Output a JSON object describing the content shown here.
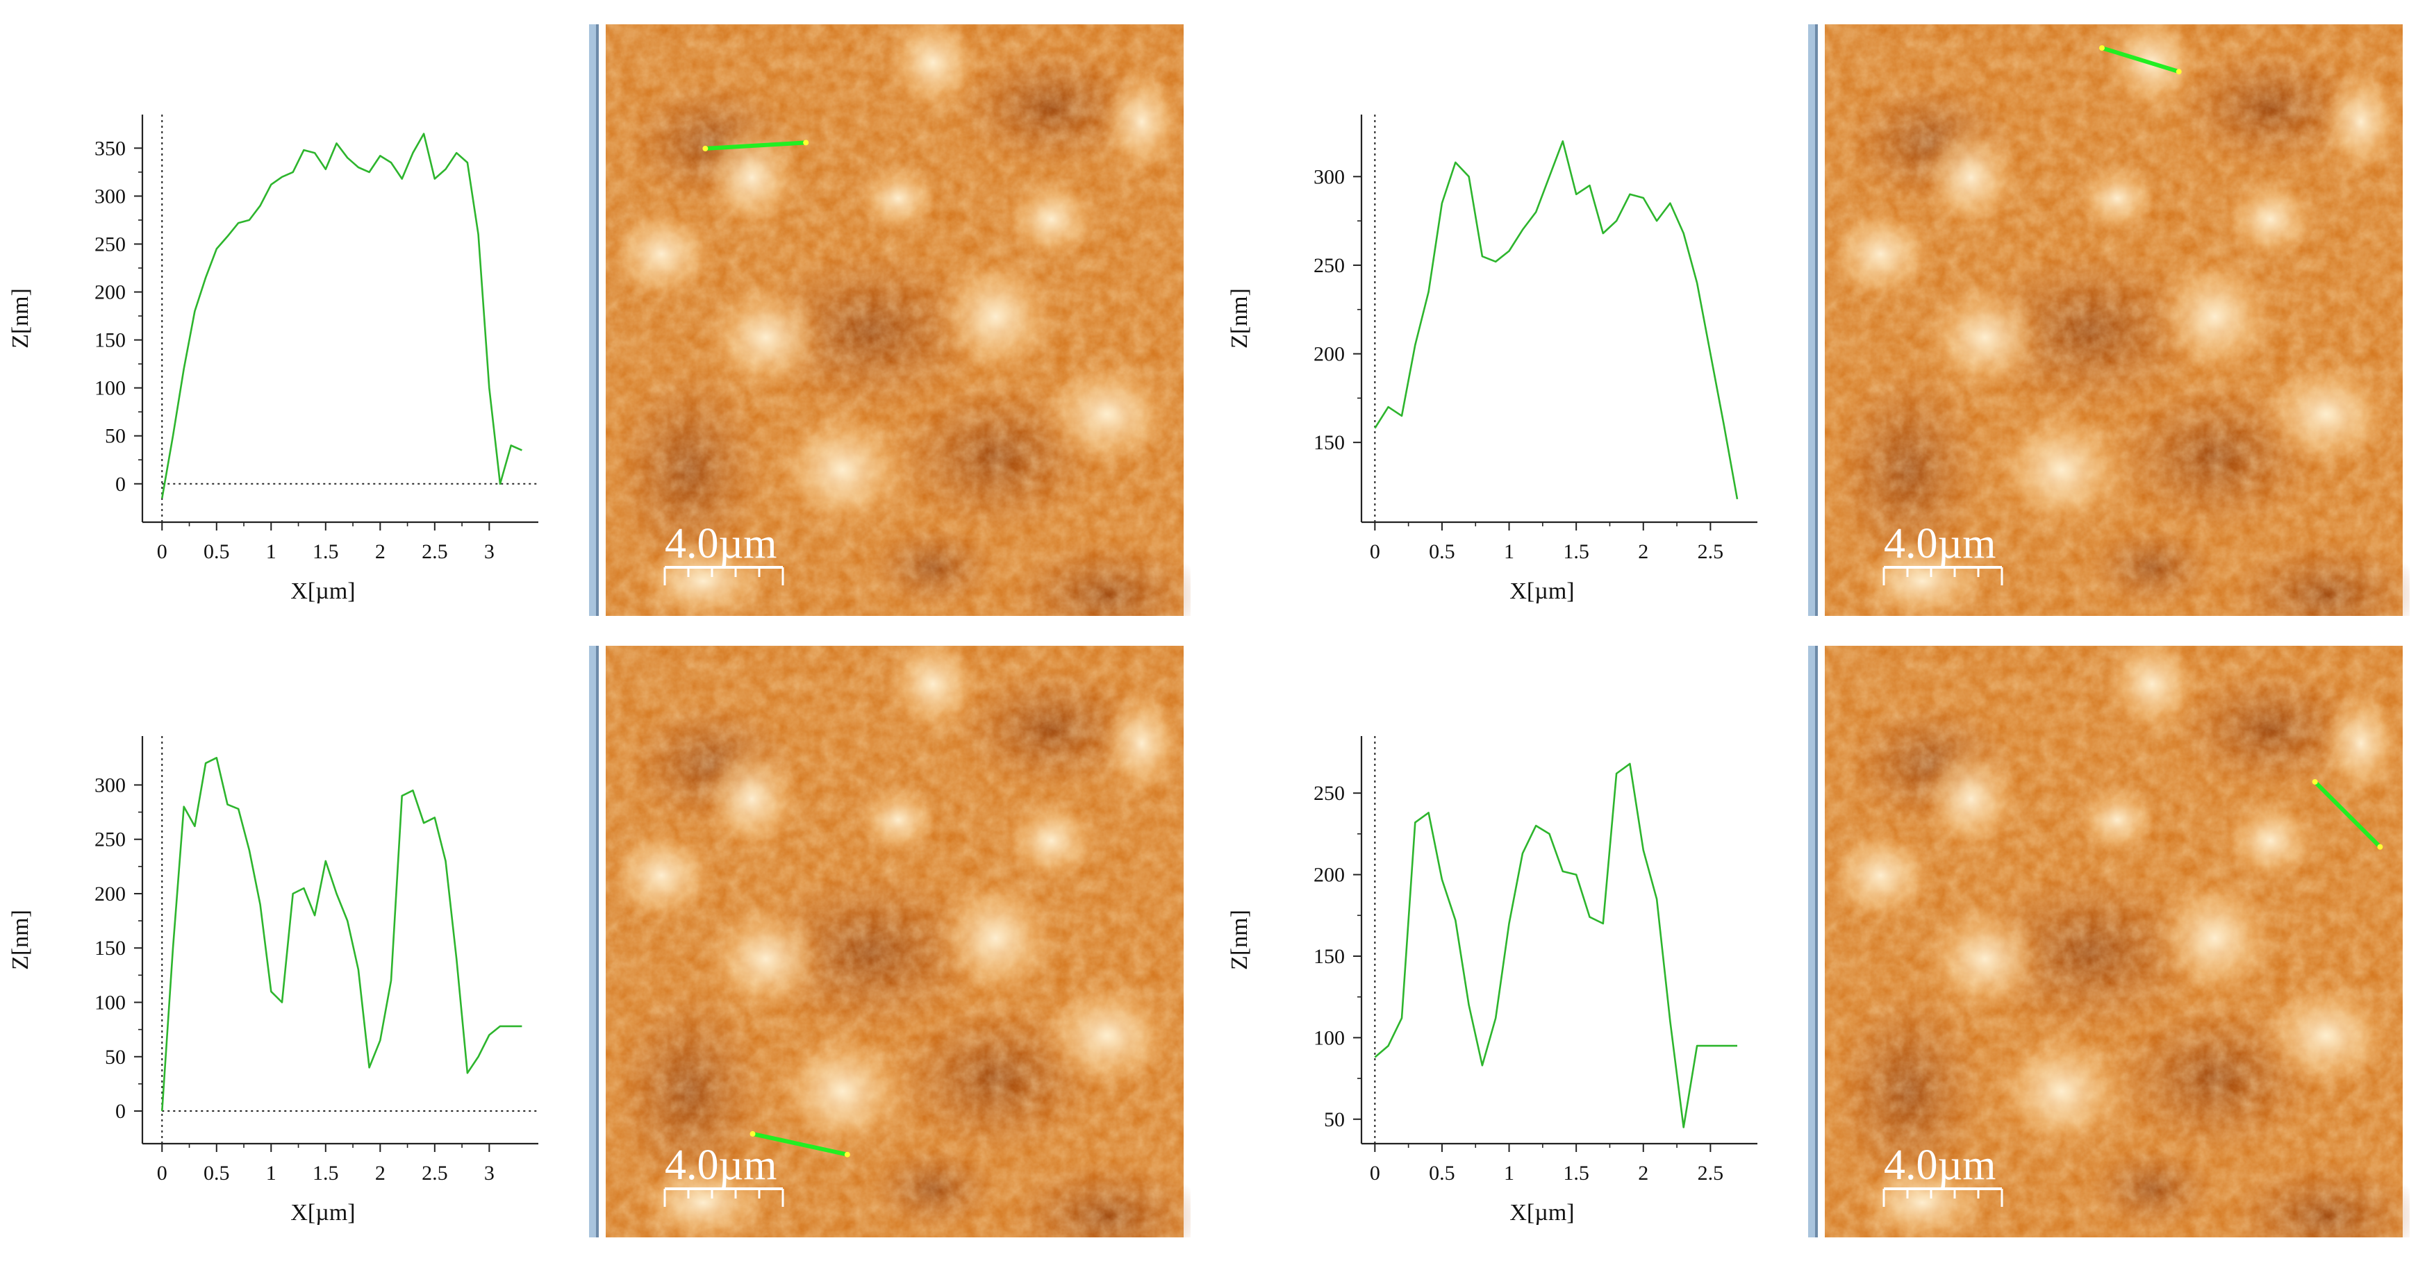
{
  "colors": {
    "profile_line": "#2db52d",
    "scan_line": "#22ee22",
    "scan_line_ends": "#ffff33",
    "afm_dark": "#8a3300",
    "afm_mid": "#d2741e",
    "afm_light": "#fbe7c0",
    "frame_blue": "#a9c4dd"
  },
  "chart_data": [
    {
      "type": "line",
      "xlabel": "X[µm]",
      "ylabel": "Z[nm]",
      "xlim": [
        -0.18,
        3.45
      ],
      "ylim": [
        -40,
        385
      ],
      "xticks": [
        0,
        0.5,
        1,
        1.5,
        2,
        2.5,
        3
      ],
      "xtick_labels": [
        "0",
        "0.5",
        "1",
        "1.5",
        "2",
        "2.5",
        "3"
      ],
      "yticks": [
        0,
        50,
        100,
        150,
        200,
        250,
        300,
        350
      ],
      "ytick_labels": [
        "0",
        "50",
        "100",
        "150",
        "200",
        "250",
        "300",
        "350"
      ],
      "zero_line": true,
      "x": [
        0,
        0.1,
        0.2,
        0.3,
        0.4,
        0.5,
        0.6,
        0.7,
        0.8,
        0.9,
        1.0,
        1.1,
        1.2,
        1.3,
        1.4,
        1.5,
        1.6,
        1.7,
        1.8,
        1.9,
        2.0,
        2.1,
        2.2,
        2.3,
        2.4,
        2.5,
        2.6,
        2.7,
        2.8,
        2.9,
        3.0,
        3.1,
        3.2,
        3.3
      ],
      "y": [
        -15,
        50,
        120,
        180,
        215,
        245,
        258,
        272,
        275,
        290,
        312,
        320,
        325,
        348,
        345,
        328,
        355,
        340,
        330,
        325,
        342,
        335,
        318,
        345,
        365,
        318,
        328,
        345,
        335,
        260,
        100,
        0,
        40,
        35
      ],
      "scale_bar": "4.0µm",
      "scan_line": [
        [
          0.18,
          0.21
        ],
        [
          0.35,
          0.2
        ]
      ]
    },
    {
      "type": "line",
      "xlabel": "X[µm]",
      "ylabel": "Z[nm]",
      "xlim": [
        -0.1,
        2.85
      ],
      "ylim": [
        105,
        335
      ],
      "xticks": [
        0,
        0.5,
        1,
        1.5,
        2,
        2.5
      ],
      "xtick_labels": [
        "0",
        "0.5",
        "1",
        "1.5",
        "2",
        "2.5"
      ],
      "yticks": [
        150,
        200,
        250,
        300
      ],
      "ytick_labels": [
        "150",
        "200",
        "250",
        "300"
      ],
      "zero_line": false,
      "x": [
        0,
        0.1,
        0.2,
        0.3,
        0.4,
        0.5,
        0.6,
        0.7,
        0.8,
        0.9,
        1.0,
        1.1,
        1.2,
        1.3,
        1.4,
        1.5,
        1.6,
        1.7,
        1.8,
        1.9,
        2.0,
        2.1,
        2.2,
        2.3,
        2.4,
        2.5,
        2.6,
        2.7
      ],
      "y": [
        158,
        170,
        165,
        205,
        235,
        285,
        308,
        300,
        255,
        252,
        258,
        270,
        280,
        300,
        320,
        290,
        295,
        268,
        275,
        290,
        288,
        275,
        285,
        268,
        240,
        200,
        160,
        118
      ],
      "scale_bar": "4.0µm",
      "scan_line": [
        [
          0.48,
          0.04
        ],
        [
          0.61,
          0.08
        ]
      ]
    },
    {
      "type": "line",
      "xlabel": "X[µm]",
      "ylabel": "Z[nm]",
      "xlim": [
        -0.18,
        3.45
      ],
      "ylim": [
        -30,
        345
      ],
      "xticks": [
        0,
        0.5,
        1,
        1.5,
        2,
        2.5,
        3
      ],
      "xtick_labels": [
        "0",
        "0.5",
        "1",
        "1.5",
        "2",
        "2.5",
        "3"
      ],
      "yticks": [
        0,
        50,
        100,
        150,
        200,
        250,
        300
      ],
      "ytick_labels": [
        "0",
        "50",
        "100",
        "150",
        "200",
        "250",
        "300"
      ],
      "zero_line": true,
      "x": [
        0,
        0.1,
        0.2,
        0.3,
        0.4,
        0.5,
        0.6,
        0.7,
        0.8,
        0.9,
        1.0,
        1.1,
        1.2,
        1.3,
        1.4,
        1.5,
        1.6,
        1.7,
        1.8,
        1.9,
        2.0,
        2.1,
        2.2,
        2.3,
        2.4,
        2.5,
        2.6,
        2.7,
        2.8,
        2.9,
        3.0,
        3.1,
        3.2,
        3.3
      ],
      "y": [
        0,
        150,
        280,
        262,
        320,
        325,
        282,
        278,
        240,
        190,
        110,
        100,
        200,
        205,
        180,
        230,
        200,
        175,
        130,
        40,
        65,
        120,
        290,
        295,
        265,
        270,
        230,
        140,
        35,
        50,
        70,
        78,
        78,
        78
      ],
      "scale_bar": "4.0µm",
      "scan_line": [
        [
          0.26,
          0.825
        ],
        [
          0.42,
          0.86
        ]
      ]
    },
    {
      "type": "line",
      "xlabel": "X[µm]",
      "ylabel": "Z[nm]",
      "xlim": [
        -0.1,
        2.85
      ],
      "ylim": [
        35,
        285
      ],
      "xticks": [
        0,
        0.5,
        1,
        1.5,
        2,
        2.5
      ],
      "xtick_labels": [
        "0",
        "0.5",
        "1",
        "1.5",
        "2",
        "2.5"
      ],
      "yticks": [
        50,
        100,
        150,
        200,
        250
      ],
      "ytick_labels": [
        "50",
        "100",
        "150",
        "200",
        "250"
      ],
      "zero_line": false,
      "x": [
        0,
        0.1,
        0.2,
        0.3,
        0.4,
        0.5,
        0.6,
        0.7,
        0.8,
        0.9,
        1.0,
        1.1,
        1.2,
        1.3,
        1.4,
        1.5,
        1.6,
        1.7,
        1.8,
        1.9,
        2.0,
        2.1,
        2.2,
        2.3,
        2.4,
        2.5,
        2.6,
        2.7
      ],
      "y": [
        88,
        95,
        112,
        232,
        238,
        197,
        172,
        120,
        83,
        112,
        170,
        213,
        230,
        225,
        202,
        200,
        174,
        170,
        262,
        268,
        215,
        185,
        110,
        45,
        95,
        95,
        95,
        95
      ],
      "scale_bar": "4.0µm",
      "scan_line": [
        [
          0.84,
          0.23
        ],
        [
          0.95,
          0.34
        ]
      ]
    }
  ]
}
